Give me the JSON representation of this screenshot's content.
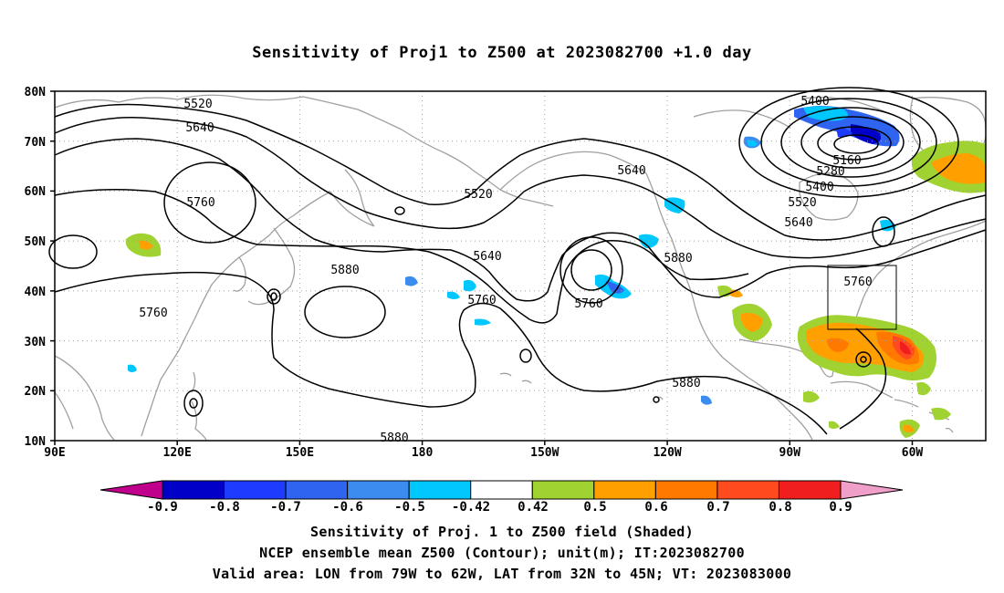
{
  "title": "Sensitivity of Proj1 to Z500 at 2023082700 +1.0 day",
  "map": {
    "lat_range": [
      10,
      80
    ],
    "lon_range_east": [
      90,
      318
    ],
    "lat_ticks": [
      "80N",
      "70N",
      "60N",
      "50N",
      "40N",
      "30N",
      "20N",
      "10N"
    ],
    "lon_ticks": [
      "90E",
      "120E",
      "150E",
      "180",
      "150W",
      "120W",
      "90W",
      "60W"
    ],
    "grid": true,
    "valid_box": {
      "lon": [
        -79,
        -62
      ],
      "lat": [
        32,
        45
      ]
    },
    "contour_labels": [
      "5400",
      "5520",
      "5640",
      "5760",
      "5520",
      "5640",
      "5760",
      "5880",
      "5640",
      "5760",
      "5760",
      "5880",
      "5160",
      "5280",
      "5400",
      "5520",
      "5640",
      "5760",
      "5880",
      "5880",
      "5760"
    ],
    "colors": {
      "coast": "#a0a0a0",
      "contour": "#000000",
      "grid": "#a0a0a0"
    }
  },
  "colorbar": {
    "labels": [
      "-0.9",
      "-0.8",
      "-0.7",
      "-0.6",
      "-0.5",
      "-0.42",
      "0.42",
      "0.5",
      "0.6",
      "0.7",
      "0.8",
      "0.9"
    ],
    "colors": [
      "#c0008c",
      "#0000c8",
      "#1e3cff",
      "#2e64f0",
      "#3c8cf0",
      "#00c8ff",
      "#ffffff",
      "#a0d232",
      "#ffa000",
      "#ff7800",
      "#ff4b1e",
      "#f01e1e",
      "#f0a0c8"
    ]
  },
  "footer": {
    "line1": "Sensitivity of Proj. 1 to Z500 field (Shaded)",
    "line2": "NCEP ensemble mean Z500 (Contour); unit(m); IT:2023082700",
    "line3": "Valid area: LON from 79W to 62W, LAT from 32N to 45N; VT: 2023083000"
  }
}
